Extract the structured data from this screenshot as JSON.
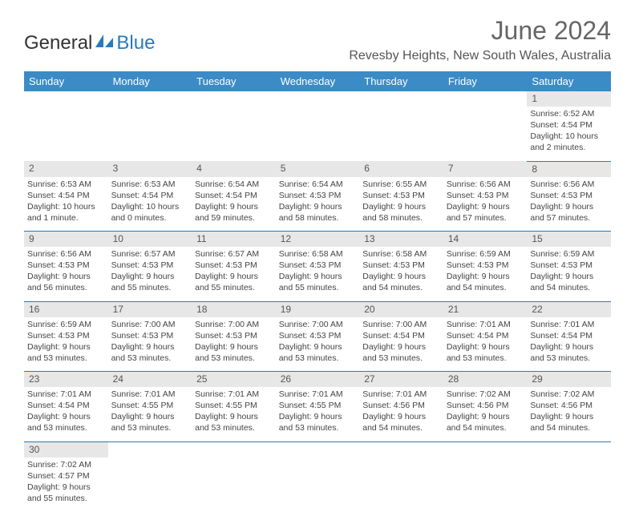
{
  "logo": {
    "text1": "General",
    "text2": "Blue"
  },
  "title": "June 2024",
  "location": "Revesby Heights, New South Wales, Australia",
  "header_bg": "#3b8bc6",
  "day_headers": [
    "Sunday",
    "Monday",
    "Tuesday",
    "Wednesday",
    "Thursday",
    "Friday",
    "Saturday"
  ],
  "weeks": [
    {
      "nums": [
        "",
        "",
        "",
        "",
        "",
        "",
        "1"
      ],
      "cells": [
        null,
        null,
        null,
        null,
        null,
        null,
        {
          "sunrise": "Sunrise: 6:52 AM",
          "sunset": "Sunset: 4:54 PM",
          "day1": "Daylight: 10 hours",
          "day2": "and 2 minutes."
        }
      ]
    },
    {
      "nums": [
        "2",
        "3",
        "4",
        "5",
        "6",
        "7",
        "8"
      ],
      "cells": [
        {
          "sunrise": "Sunrise: 6:53 AM",
          "sunset": "Sunset: 4:54 PM",
          "day1": "Daylight: 10 hours",
          "day2": "and 1 minute."
        },
        {
          "sunrise": "Sunrise: 6:53 AM",
          "sunset": "Sunset: 4:54 PM",
          "day1": "Daylight: 10 hours",
          "day2": "and 0 minutes."
        },
        {
          "sunrise": "Sunrise: 6:54 AM",
          "sunset": "Sunset: 4:54 PM",
          "day1": "Daylight: 9 hours",
          "day2": "and 59 minutes."
        },
        {
          "sunrise": "Sunrise: 6:54 AM",
          "sunset": "Sunset: 4:53 PM",
          "day1": "Daylight: 9 hours",
          "day2": "and 58 minutes."
        },
        {
          "sunrise": "Sunrise: 6:55 AM",
          "sunset": "Sunset: 4:53 PM",
          "day1": "Daylight: 9 hours",
          "day2": "and 58 minutes."
        },
        {
          "sunrise": "Sunrise: 6:56 AM",
          "sunset": "Sunset: 4:53 PM",
          "day1": "Daylight: 9 hours",
          "day2": "and 57 minutes."
        },
        {
          "sunrise": "Sunrise: 6:56 AM",
          "sunset": "Sunset: 4:53 PM",
          "day1": "Daylight: 9 hours",
          "day2": "and 57 minutes."
        }
      ]
    },
    {
      "nums": [
        "9",
        "10",
        "11",
        "12",
        "13",
        "14",
        "15"
      ],
      "cells": [
        {
          "sunrise": "Sunrise: 6:56 AM",
          "sunset": "Sunset: 4:53 PM",
          "day1": "Daylight: 9 hours",
          "day2": "and 56 minutes."
        },
        {
          "sunrise": "Sunrise: 6:57 AM",
          "sunset": "Sunset: 4:53 PM",
          "day1": "Daylight: 9 hours",
          "day2": "and 55 minutes."
        },
        {
          "sunrise": "Sunrise: 6:57 AM",
          "sunset": "Sunset: 4:53 PM",
          "day1": "Daylight: 9 hours",
          "day2": "and 55 minutes."
        },
        {
          "sunrise": "Sunrise: 6:58 AM",
          "sunset": "Sunset: 4:53 PM",
          "day1": "Daylight: 9 hours",
          "day2": "and 55 minutes."
        },
        {
          "sunrise": "Sunrise: 6:58 AM",
          "sunset": "Sunset: 4:53 PM",
          "day1": "Daylight: 9 hours",
          "day2": "and 54 minutes."
        },
        {
          "sunrise": "Sunrise: 6:59 AM",
          "sunset": "Sunset: 4:53 PM",
          "day1": "Daylight: 9 hours",
          "day2": "and 54 minutes."
        },
        {
          "sunrise": "Sunrise: 6:59 AM",
          "sunset": "Sunset: 4:53 PM",
          "day1": "Daylight: 9 hours",
          "day2": "and 54 minutes."
        }
      ]
    },
    {
      "nums": [
        "16",
        "17",
        "18",
        "19",
        "20",
        "21",
        "22"
      ],
      "cells": [
        {
          "sunrise": "Sunrise: 6:59 AM",
          "sunset": "Sunset: 4:53 PM",
          "day1": "Daylight: 9 hours",
          "day2": "and 53 minutes."
        },
        {
          "sunrise": "Sunrise: 7:00 AM",
          "sunset": "Sunset: 4:53 PM",
          "day1": "Daylight: 9 hours",
          "day2": "and 53 minutes."
        },
        {
          "sunrise": "Sunrise: 7:00 AM",
          "sunset": "Sunset: 4:53 PM",
          "day1": "Daylight: 9 hours",
          "day2": "and 53 minutes."
        },
        {
          "sunrise": "Sunrise: 7:00 AM",
          "sunset": "Sunset: 4:53 PM",
          "day1": "Daylight: 9 hours",
          "day2": "and 53 minutes."
        },
        {
          "sunrise": "Sunrise: 7:00 AM",
          "sunset": "Sunset: 4:54 PM",
          "day1": "Daylight: 9 hours",
          "day2": "and 53 minutes."
        },
        {
          "sunrise": "Sunrise: 7:01 AM",
          "sunset": "Sunset: 4:54 PM",
          "day1": "Daylight: 9 hours",
          "day2": "and 53 minutes."
        },
        {
          "sunrise": "Sunrise: 7:01 AM",
          "sunset": "Sunset: 4:54 PM",
          "day1": "Daylight: 9 hours",
          "day2": "and 53 minutes."
        }
      ]
    },
    {
      "nums": [
        "23",
        "24",
        "25",
        "26",
        "27",
        "28",
        "29"
      ],
      "cells": [
        {
          "sunrise": "Sunrise: 7:01 AM",
          "sunset": "Sunset: 4:54 PM",
          "day1": "Daylight: 9 hours",
          "day2": "and 53 minutes."
        },
        {
          "sunrise": "Sunrise: 7:01 AM",
          "sunset": "Sunset: 4:55 PM",
          "day1": "Daylight: 9 hours",
          "day2": "and 53 minutes."
        },
        {
          "sunrise": "Sunrise: 7:01 AM",
          "sunset": "Sunset: 4:55 PM",
          "day1": "Daylight: 9 hours",
          "day2": "and 53 minutes."
        },
        {
          "sunrise": "Sunrise: 7:01 AM",
          "sunset": "Sunset: 4:55 PM",
          "day1": "Daylight: 9 hours",
          "day2": "and 53 minutes."
        },
        {
          "sunrise": "Sunrise: 7:01 AM",
          "sunset": "Sunset: 4:56 PM",
          "day1": "Daylight: 9 hours",
          "day2": "and 54 minutes."
        },
        {
          "sunrise": "Sunrise: 7:02 AM",
          "sunset": "Sunset: 4:56 PM",
          "day1": "Daylight: 9 hours",
          "day2": "and 54 minutes."
        },
        {
          "sunrise": "Sunrise: 7:02 AM",
          "sunset": "Sunset: 4:56 PM",
          "day1": "Daylight: 9 hours",
          "day2": "and 54 minutes."
        }
      ]
    },
    {
      "nums": [
        "30",
        "",
        "",
        "",
        "",
        "",
        ""
      ],
      "cells": [
        {
          "sunrise": "Sunrise: 7:02 AM",
          "sunset": "Sunset: 4:57 PM",
          "day1": "Daylight: 9 hours",
          "day2": "and 55 minutes."
        },
        null,
        null,
        null,
        null,
        null,
        null
      ]
    }
  ]
}
